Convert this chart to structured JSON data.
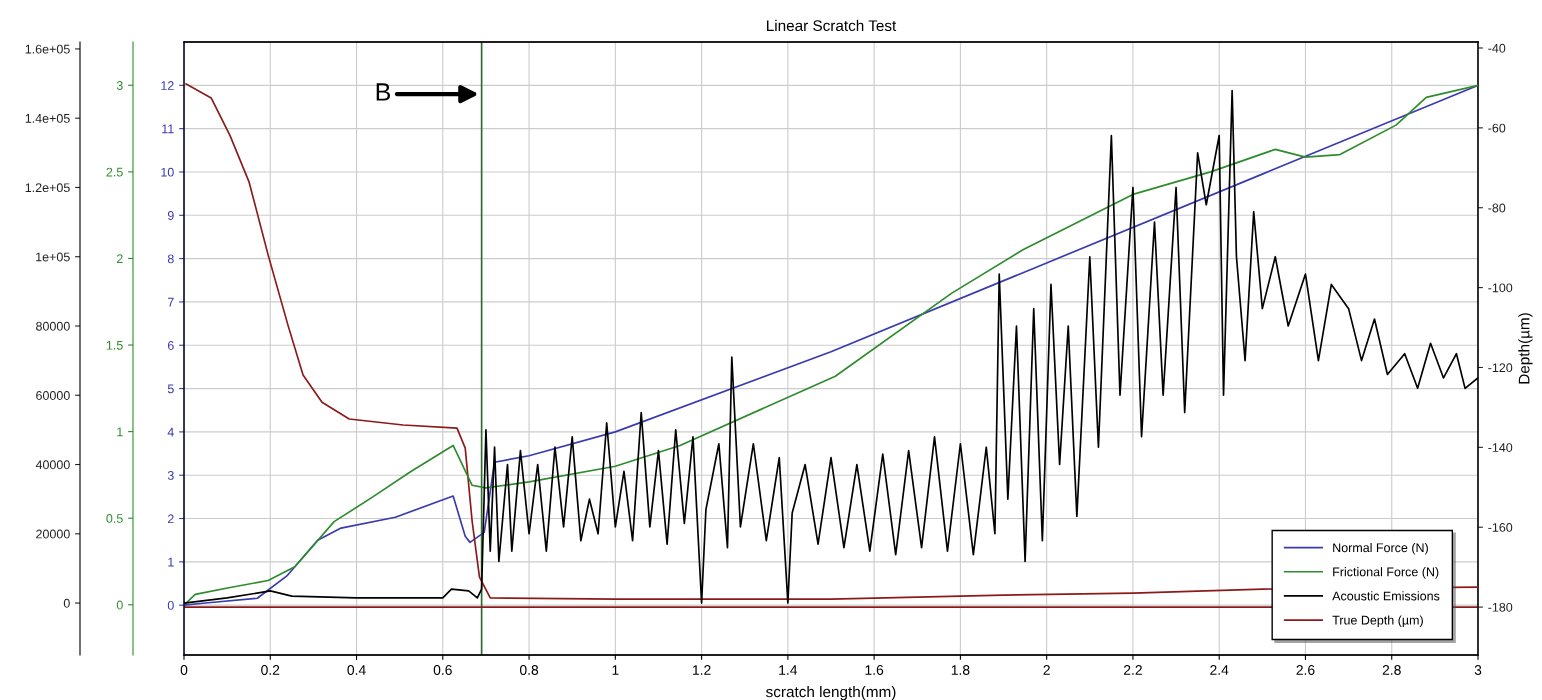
{
  "chart_data": [
    {
      "type": "line",
      "title": "Linear Scratch Test",
      "xlabel": "scratch length(mm)",
      "y2label": "Depth(µm)",
      "xlim": [
        0,
        3
      ],
      "xticks": [
        0,
        0.2,
        0.4,
        0.6,
        0.8,
        1,
        1.2,
        1.4,
        1.6,
        1.8,
        2,
        2.2,
        2.4,
        2.6,
        2.8,
        3
      ],
      "ylim": [
        -1.15,
        13
      ],
      "yticks": [
        0,
        1,
        2,
        3,
        4,
        5,
        6,
        7,
        8,
        9,
        10,
        11,
        12
      ],
      "y2lim": [
        -192,
        -38.5
      ],
      "y2ticks": [
        -40,
        -60,
        -80,
        -100,
        -120,
        -140,
        -160,
        -180
      ],
      "y3lim": [
        -0.29,
        3.25
      ],
      "y3ticks": [
        0,
        0.5,
        1,
        1.5,
        2,
        2.5,
        3
      ],
      "grid": true,
      "legend": "bottom right",
      "ref_lines": [
        {
          "axis": "x",
          "value": 0.69,
          "color": "#2e6b2e"
        },
        {
          "axis": "y2",
          "value": -180,
          "color": "#8b1a1a"
        }
      ],
      "annotations": [
        "B"
      ],
      "series": [
        {
          "name": "Normal Force (N)",
          "color": "#3a3ab0",
          "axis": "y",
          "x": [
            0,
            0.05,
            0.17,
            0.24,
            0.31,
            0.364,
            0.49,
            0.624,
            0.652,
            0.663,
            0.696,
            0.72,
            0.8,
            1,
            1.5,
            2,
            2.5,
            3
          ],
          "values": [
            0,
            0.05,
            0.16,
            0.69,
            1.5,
            1.78,
            2.03,
            2.52,
            1.59,
            1.45,
            1.68,
            3.3,
            3.45,
            4.0,
            5.85,
            7.9,
            9.95,
            12.0
          ]
        },
        {
          "name": "Frictional Force (N)",
          "color": "#2e8b2e",
          "axis": "y3",
          "x": [
            0.005,
            0.026,
            0.107,
            0.195,
            0.257,
            0.348,
            0.436,
            0.526,
            0.624,
            0.668,
            0.7,
            0.8,
            1,
            1.15,
            1.51,
            1.78,
            1.945,
            2.2,
            2.38,
            2.53,
            2.6,
            2.68,
            2.81,
            2.88,
            3
          ],
          "values": [
            0.01,
            0.06,
            0.1,
            0.14,
            0.22,
            0.48,
            0.62,
            0.77,
            0.92,
            0.69,
            0.675,
            0.71,
            0.8,
            0.92,
            1.32,
            1.8,
            2.05,
            2.37,
            2.5,
            2.63,
            2.585,
            2.6,
            2.77,
            2.93,
            3.0
          ]
        },
        {
          "name": "True Depth (µm)",
          "color": "#8b1a1a",
          "axis": "y2",
          "x": [
            0.005,
            0.063,
            0.107,
            0.151,
            0.195,
            0.241,
            0.276,
            0.32,
            0.383,
            0.508,
            0.633,
            0.652,
            0.668,
            0.685,
            0.71,
            1.0,
            1.5,
            1.9,
            2.2,
            2.5,
            3.0
          ],
          "values": [
            -49.0,
            -52.5,
            -62.0,
            -73.6,
            -91.8,
            -109.4,
            -121.9,
            -128.7,
            -132.9,
            -134.4,
            -135.2,
            -140.2,
            -158.5,
            -172.5,
            -177.7,
            -178,
            -178,
            -177,
            -176.5,
            -175.5,
            -175
          ]
        }
      ]
    },
    {
      "type": "line",
      "xlim": [
        0,
        3
      ],
      "tick_labels": "y",
      "ylim": [
        -15000,
        162000
      ],
      "yticks": [
        0,
        20000,
        40000,
        60000,
        80000,
        {
          "value": 100000,
          "label": "1e+05"
        },
        {
          "value": 120000,
          "label": "1.2e+05"
        },
        {
          "value": 140000,
          "label": "1.4e+05"
        },
        {
          "value": 160000,
          "label": "1.6e+05"
        }
      ],
      "series": [
        {
          "name": "Acoustic Emissions",
          "color": "#000000",
          "x": [
            0,
            0.1,
            0.2,
            0.25,
            0.4,
            0.6,
            0.62,
            0.66,
            0.68,
            0.69,
            0.7,
            0.71,
            0.72,
            0.73,
            0.75,
            0.76,
            0.78,
            0.8,
            0.82,
            0.84,
            0.86,
            0.88,
            0.9,
            0.92,
            0.94,
            0.96,
            0.98,
            1.0,
            1.02,
            1.04,
            1.06,
            1.08,
            1.1,
            1.12,
            1.14,
            1.16,
            1.18,
            1.2,
            1.21,
            1.24,
            1.26,
            1.27,
            1.29,
            1.32,
            1.35,
            1.38,
            1.4,
            1.41,
            1.44,
            1.47,
            1.5,
            1.53,
            1.56,
            1.59,
            1.62,
            1.65,
            1.68,
            1.71,
            1.74,
            1.77,
            1.8,
            1.83,
            1.86,
            1.88,
            1.89,
            1.91,
            1.93,
            1.95,
            1.97,
            1.99,
            2.01,
            2.03,
            2.05,
            2.07,
            2.1,
            2.12,
            2.15,
            2.17,
            2.2,
            2.22,
            2.25,
            2.27,
            2.3,
            2.32,
            2.35,
            2.37,
            2.4,
            2.41,
            2.43,
            2.44,
            2.46,
            2.48,
            2.5,
            2.53,
            2.56,
            2.6,
            2.63,
            2.66,
            2.7,
            2.73,
            2.76,
            2.79,
            2.83,
            2.86,
            2.89,
            2.92,
            2.95,
            2.97,
            3.0
          ],
          "values": [
            0,
            1500,
            3500,
            2000,
            1500,
            1500,
            4000,
            3500,
            1500,
            4000,
            50000,
            15000,
            45000,
            12000,
            40000,
            15000,
            44000,
            20000,
            40000,
            15000,
            45000,
            22000,
            48000,
            18000,
            30000,
            20000,
            52000,
            22000,
            38000,
            18000,
            55000,
            22000,
            44000,
            17000,
            50000,
            23000,
            48000,
            0,
            27000,
            46000,
            16000,
            71000,
            22000,
            46000,
            18000,
            42000,
            0,
            26000,
            40000,
            17000,
            42000,
            16000,
            40000,
            15000,
            43000,
            14000,
            44000,
            16000,
            48000,
            15000,
            46000,
            14000,
            45000,
            20000,
            95000,
            30000,
            80000,
            12000,
            85000,
            18000,
            92000,
            40000,
            80000,
            25000,
            100000,
            45000,
            135000,
            60000,
            120000,
            48000,
            110000,
            60000,
            120000,
            55000,
            130000,
            115000,
            135000,
            60000,
            148000,
            100000,
            70000,
            113000,
            85000,
            100000,
            80000,
            95000,
            70000,
            92000,
            85000,
            70000,
            82000,
            66000,
            72000,
            62000,
            75000,
            65000,
            72000,
            62000,
            65000
          ]
        }
      ]
    }
  ]
}
